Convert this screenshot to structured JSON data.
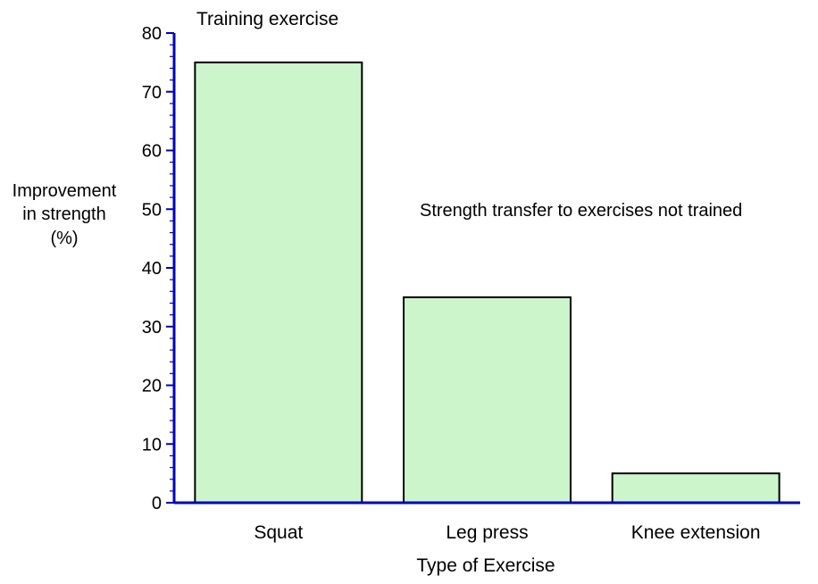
{
  "chart_data": {
    "type": "bar",
    "categories": [
      "Squat",
      "Leg press",
      "Knee extension"
    ],
    "values": [
      75,
      35,
      5
    ],
    "ylabel_lines": [
      "Improvement",
      "in strength",
      "(%)"
    ],
    "xlabel": "Type of Exercise",
    "ylim": [
      0,
      80
    ],
    "yticks": [
      0,
      10,
      20,
      30,
      40,
      50,
      60,
      70,
      80
    ],
    "annotations": {
      "training": "Training exercise",
      "transfer": "Strength transfer to exercises not trained"
    },
    "grid": false,
    "legend": "none",
    "colors": {
      "bar_fill": "#ccf5cc",
      "bar_stroke": "#000000",
      "axis": "#0000c0"
    }
  }
}
